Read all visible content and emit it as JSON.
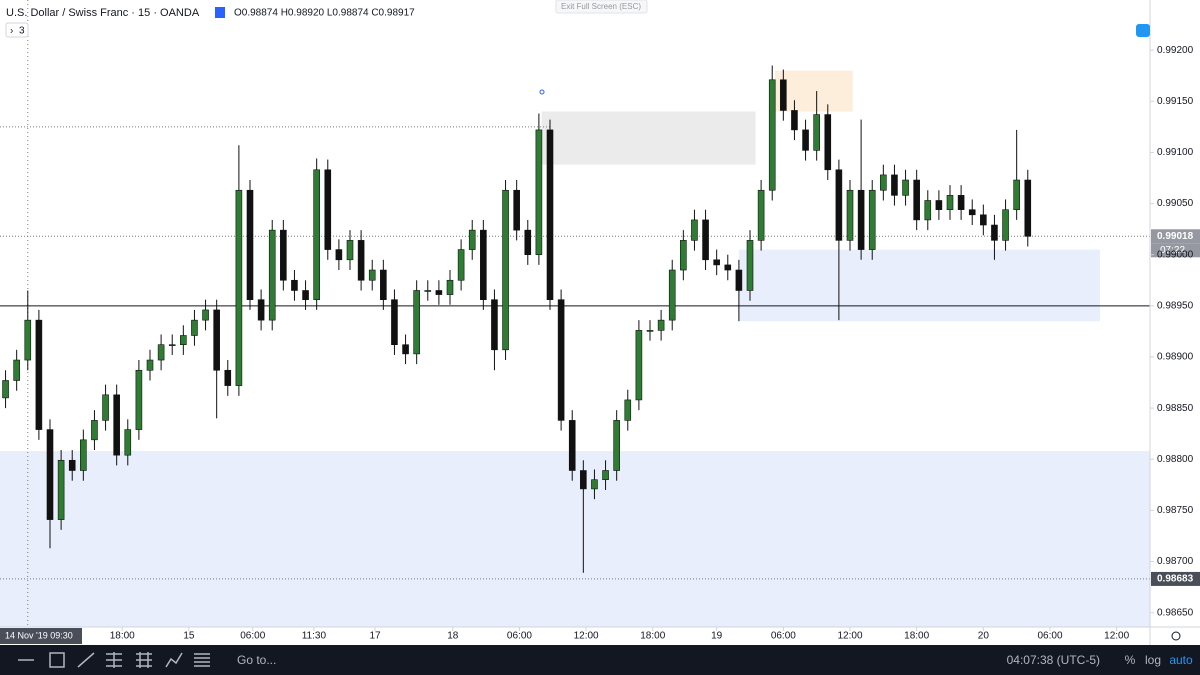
{
  "header": {
    "symbol": "U.S. Dollar / Swiss Franc · 15 · OANDA",
    "ohlc": "O0.98874 H0.98920 L0.98874 C0.98917",
    "indicators": "3",
    "fullscreen": "Exit Full Screen (ESC)"
  },
  "footer": {
    "goto": "Go to...",
    "clock": "04:07:38 (UTC-5)",
    "percent": "%",
    "log": "log",
    "auto": "auto"
  },
  "chart_data": {
    "type": "candlestick",
    "up_color": "#2e7d32",
    "down_color": "#111111",
    "xlim": [
      0,
      414
    ],
    "ylim": [
      0.98636,
      0.99249
    ],
    "xticks": [
      {
        "value": 44,
        "label": "18:00"
      },
      {
        "value": 68,
        "label": "15"
      },
      {
        "value": 91,
        "label": "06:00"
      },
      {
        "value": 113,
        "label": "11:30"
      },
      {
        "value": 135,
        "label": "17"
      },
      {
        "value": 163,
        "label": "18"
      },
      {
        "value": 187,
        "label": "06:00"
      },
      {
        "value": 211,
        "label": "12:00"
      },
      {
        "value": 235,
        "label": "18:00"
      },
      {
        "value": 258,
        "label": "19"
      },
      {
        "value": 282,
        "label": "06:00"
      },
      {
        "value": 306,
        "label": "12:00"
      },
      {
        "value": 330,
        "label": "18:00"
      },
      {
        "value": 354,
        "label": "20"
      },
      {
        "value": 378,
        "label": "06:00"
      },
      {
        "value": 402,
        "label": "12:00"
      }
    ],
    "yticks": [
      {
        "value": 0.992,
        "label": "0.99200"
      },
      {
        "value": 0.9915,
        "label": "0.99150"
      },
      {
        "value": 0.991,
        "label": "0.99100"
      },
      {
        "value": 0.9905,
        "label": "0.99050"
      },
      {
        "value": 0.99,
        "label": "0.99000"
      },
      {
        "value": 0.9895,
        "label": "0.98950"
      },
      {
        "value": 0.989,
        "label": "0.98900"
      },
      {
        "value": 0.9885,
        "label": "0.98850"
      },
      {
        "value": 0.988,
        "label": "0.98800"
      },
      {
        "value": 0.9875,
        "label": "0.98750"
      },
      {
        "value": 0.987,
        "label": "0.98700"
      },
      {
        "value": 0.9865,
        "label": "0.98650"
      }
    ],
    "crosshair": {
      "x": 10,
      "label": "14 Nov '19  09:30"
    },
    "countdown": "07:22",
    "zones": [
      {
        "x": [
          195,
          272
        ],
        "y": [
          0.99088,
          0.9914
        ],
        "color": "#ebebeb"
      },
      {
        "x": [
          279,
          307
        ],
        "y": [
          0.9914,
          0.9918
        ],
        "color": "#fdeedb"
      },
      {
        "x": [
          266,
          396
        ],
        "y": [
          0.98935,
          0.99005
        ],
        "color": "#e8eefb"
      },
      {
        "x": [
          0,
          414
        ],
        "y": [
          0.98636,
          0.98808
        ],
        "color": "#e8eefb"
      }
    ],
    "levels": [
      {
        "value": 0.9895,
        "style": "solid",
        "color": "#131722"
      },
      {
        "value": 0.99125,
        "style": "dotted",
        "color": "#787b86",
        "x": [
          0,
          198
        ]
      },
      {
        "value": 0.99018,
        "style": "dotted",
        "color": "#787b86",
        "label": "0.99018",
        "label_color": "#9598a1"
      },
      {
        "value": 0.98683,
        "style": "dotted",
        "color": "#787b86",
        "label": "0.98683",
        "label_color": "#4a4e59"
      }
    ],
    "x": [
      2,
      6,
      10,
      14,
      18,
      22,
      26,
      30,
      34,
      38,
      42,
      46,
      50,
      54,
      58,
      62,
      66,
      70,
      74,
      78,
      82,
      86,
      90,
      94,
      98,
      102,
      106,
      110,
      114,
      118,
      122,
      126,
      130,
      134,
      138,
      142,
      146,
      150,
      154,
      158,
      162,
      166,
      170,
      174,
      178,
      182,
      186,
      190,
      194,
      198,
      202,
      206,
      210,
      214,
      218,
      222,
      226,
      230,
      234,
      238,
      242,
      246,
      250,
      254,
      258,
      262,
      266,
      270,
      274,
      278,
      282,
      286,
      290,
      294,
      298,
      302,
      306,
      310,
      314,
      318,
      322,
      326,
      330,
      334,
      338,
      342,
      346,
      350,
      354,
      358,
      362,
      366,
      370
    ],
    "open": [
      0.9886,
      0.98877,
      0.98897,
      0.98936,
      0.98829,
      0.98741,
      0.98799,
      0.98789,
      0.98819,
      0.98838,
      0.98863,
      0.98804,
      0.98829,
      0.98887,
      0.98897,
      0.98912,
      0.98912,
      0.98921,
      0.98936,
      0.98946,
      0.98887,
      0.98872,
      0.99063,
      0.98956,
      0.98936,
      0.99024,
      0.98975,
      0.98965,
      0.98956,
      0.99083,
      0.99005,
      0.98995,
      0.99014,
      0.98975,
      0.98985,
      0.98956,
      0.98912,
      0.98903,
      0.98965,
      0.98965,
      0.98961,
      0.98975,
      0.99005,
      0.99024,
      0.98956,
      0.98907,
      0.99063,
      0.99024,
      0.99,
      0.99122,
      0.98956,
      0.98838,
      0.98789,
      0.98771,
      0.9878,
      0.98789,
      0.98838,
      0.98858,
      0.98926,
      0.98926,
      0.98936,
      0.98985,
      0.99014,
      0.99034,
      0.98995,
      0.9899,
      0.98985,
      0.98965,
      0.99014,
      0.99063,
      0.99171,
      0.99141,
      0.99122,
      0.99102,
      0.99137,
      0.99083,
      0.99014,
      0.99063,
      0.99005,
      0.99063,
      0.99078,
      0.99058,
      0.99073,
      0.99034,
      0.99053,
      0.99044,
      0.99058,
      0.99044,
      0.99039,
      0.99029,
      0.99014,
      0.99044,
      0.99073
    ],
    "high": [
      0.98887,
      0.98907,
      0.98965,
      0.98946,
      0.98839,
      0.98809,
      0.98809,
      0.98829,
      0.98848,
      0.98873,
      0.98873,
      0.98839,
      0.98897,
      0.98907,
      0.98922,
      0.98922,
      0.98931,
      0.98946,
      0.98956,
      0.98956,
      0.98897,
      0.99107,
      0.99073,
      0.98966,
      0.99034,
      0.99034,
      0.98985,
      0.98975,
      0.99094,
      0.99093,
      0.99015,
      0.99024,
      0.99024,
      0.98995,
      0.98995,
      0.98966,
      0.98922,
      0.98975,
      0.98975,
      0.98975,
      0.98985,
      0.99015,
      0.99034,
      0.99034,
      0.98966,
      0.99073,
      0.99073,
      0.99034,
      0.99138,
      0.99132,
      0.98966,
      0.98848,
      0.98799,
      0.9879,
      0.98799,
      0.98848,
      0.98868,
      0.98936,
      0.98936,
      0.98946,
      0.98995,
      0.99024,
      0.99044,
      0.99044,
      0.99005,
      0.99,
      0.98995,
      0.99024,
      0.99073,
      0.99185,
      0.99181,
      0.99151,
      0.99132,
      0.9916,
      0.99147,
      0.99093,
      0.99073,
      0.99132,
      0.99073,
      0.99088,
      0.99088,
      0.99083,
      0.99083,
      0.99063,
      0.99063,
      0.99068,
      0.99068,
      0.99054,
      0.99049,
      0.99039,
      0.99054,
      0.99122,
      0.99083
    ],
    "low": [
      0.9885,
      0.98867,
      0.98887,
      0.98819,
      0.98713,
      0.98731,
      0.98779,
      0.98779,
      0.98809,
      0.98828,
      0.98794,
      0.98794,
      0.98819,
      0.98877,
      0.98887,
      0.98902,
      0.98902,
      0.98911,
      0.98926,
      0.9884,
      0.98862,
      0.98862,
      0.98946,
      0.98926,
      0.98926,
      0.98965,
      0.98955,
      0.98946,
      0.98946,
      0.98995,
      0.98985,
      0.98985,
      0.98965,
      0.98965,
      0.98946,
      0.98902,
      0.98893,
      0.98893,
      0.98955,
      0.98951,
      0.98951,
      0.98965,
      0.98995,
      0.98946,
      0.98887,
      0.98897,
      0.99014,
      0.9899,
      0.9899,
      0.98946,
      0.98828,
      0.98779,
      0.98689,
      0.98761,
      0.9877,
      0.98779,
      0.98828,
      0.98848,
      0.98916,
      0.98916,
      0.98926,
      0.98975,
      0.99004,
      0.98985,
      0.9898,
      0.98975,
      0.98935,
      0.98955,
      0.99004,
      0.99053,
      0.99131,
      0.99112,
      0.99092,
      0.99092,
      0.99073,
      0.98936,
      0.99004,
      0.98995,
      0.98995,
      0.99053,
      0.99048,
      0.99048,
      0.99024,
      0.99024,
      0.99034,
      0.99034,
      0.99034,
      0.99029,
      0.99019,
      0.98995,
      0.99004,
      0.99034,
      0.99008
    ],
    "close": [
      0.98877,
      0.98897,
      0.98936,
      0.98829,
      0.98741,
      0.98799,
      0.98789,
      0.98819,
      0.98838,
      0.98863,
      0.98804,
      0.98829,
      0.98887,
      0.98897,
      0.98912,
      0.98912,
      0.98921,
      0.98936,
      0.98946,
      0.98887,
      0.98872,
      0.99063,
      0.98956,
      0.98936,
      0.99024,
      0.98975,
      0.98965,
      0.98956,
      0.99083,
      0.99005,
      0.98995,
      0.99014,
      0.98975,
      0.98985,
      0.98956,
      0.98912,
      0.98903,
      0.98965,
      0.98965,
      0.98961,
      0.98975,
      0.99005,
      0.99024,
      0.98956,
      0.98907,
      0.99063,
      0.99024,
      0.99,
      0.99122,
      0.98956,
      0.98838,
      0.98789,
      0.98771,
      0.9878,
      0.98789,
      0.98838,
      0.98858,
      0.98926,
      0.98926,
      0.98936,
      0.98985,
      0.99014,
      0.99034,
      0.98995,
      0.9899,
      0.98985,
      0.98965,
      0.99014,
      0.99063,
      0.99171,
      0.99141,
      0.99122,
      0.99102,
      0.99137,
      0.99083,
      0.99014,
      0.99063,
      0.99005,
      0.99063,
      0.99078,
      0.99058,
      0.99073,
      0.99034,
      0.99053,
      0.99044,
      0.99058,
      0.99044,
      0.99039,
      0.99029,
      0.99014,
      0.99044,
      0.99073,
      0.99018
    ]
  }
}
